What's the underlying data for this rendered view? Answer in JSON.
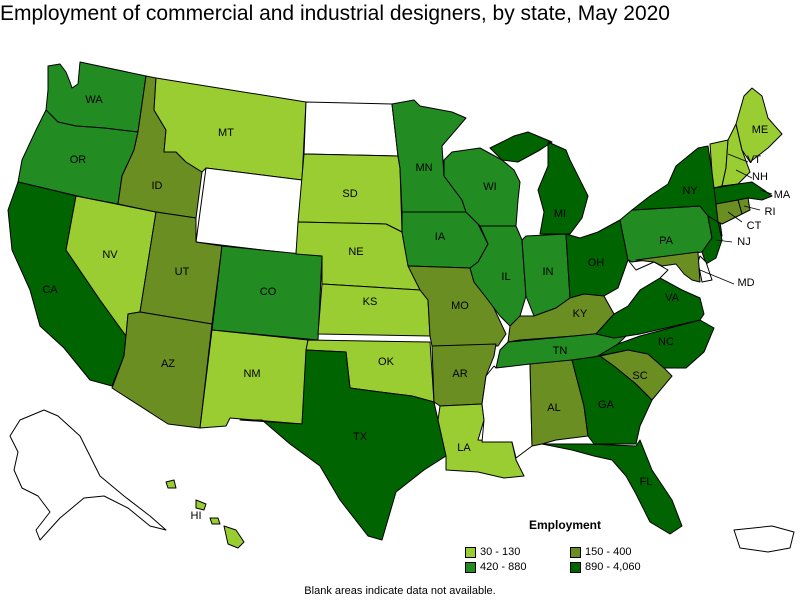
{
  "title": "Employment of commercial and industrial designers, by state, May 2020",
  "legend": {
    "title": "Employment",
    "items": [
      {
        "label": "30 - 130",
        "color": "#9acd32"
      },
      {
        "label": "150 - 400",
        "color": "#6b8e23"
      },
      {
        "label": "420 - 880",
        "color": "#228b22"
      },
      {
        "label": "890 - 4,060",
        "color": "#006400"
      }
    ]
  },
  "footnote": "Blank areas indicate data not available.",
  "colors": {
    "no_data": "#ffffff",
    "tier1": "#9acd32",
    "tier2": "#6b8e23",
    "tier3": "#228b22",
    "tier4": "#006400"
  },
  "states": {
    "WA": "tier3",
    "OR": "tier3",
    "CA": "tier4",
    "NV": "tier1",
    "ID": "tier2",
    "MT": "tier1",
    "WY": "none",
    "UT": "tier2",
    "AZ": "tier2",
    "CO": "tier3",
    "NM": "tier1",
    "ND": "none",
    "SD": "tier1",
    "NE": "tier1",
    "KS": "tier1",
    "OK": "tier1",
    "TX": "tier4",
    "MN": "tier3",
    "IA": "tier3",
    "MO": "tier2",
    "AR": "tier2",
    "LA": "tier1",
    "WI": "tier3",
    "IL": "tier3",
    "MI": "tier4",
    "IN": "tier3",
    "OH": "tier4",
    "KY": "tier2",
    "TN": "tier3",
    "MS": "none",
    "AL": "tier2",
    "GA": "tier4",
    "FL": "tier4",
    "SC": "tier2",
    "NC": "tier4",
    "VA": "tier4",
    "WV": "none",
    "PA": "tier3",
    "NY": "tier4",
    "VT": "tier1",
    "NH": "tier1",
    "ME": "tier1",
    "MA": "tier4",
    "RI": "tier2",
    "CT": "tier2",
    "NJ": "tier4",
    "DE": "none",
    "MD": "tier2",
    "AK": "none",
    "HI": "tier1",
    "PR": "none"
  },
  "labels": {
    "WA": "WA",
    "OR": "OR",
    "CA": "CA",
    "NV": "NV",
    "ID": "ID",
    "MT": "MT",
    "UT": "UT",
    "AZ": "AZ",
    "CO": "CO",
    "NM": "NM",
    "SD": "SD",
    "NE": "NE",
    "KS": "KS",
    "OK": "OK",
    "TX": "TX",
    "MN": "MN",
    "IA": "IA",
    "MO": "MO",
    "AR": "AR",
    "LA": "LA",
    "WI": "WI",
    "IL": "IL",
    "MI": "MI",
    "IN": "IN",
    "OH": "OH",
    "KY": "KY",
    "TN": "TN",
    "AL": "AL",
    "GA": "GA",
    "FL": "FL",
    "SC": "SC",
    "NC": "NC",
    "VA": "VA",
    "PA": "PA",
    "NY": "NY",
    "ME": "ME",
    "VT": "VT",
    "NH": "NH",
    "MA": "MA",
    "RI": "RI",
    "CT": "CT",
    "NJ": "NJ",
    "MD": "MD",
    "HI": "HI"
  }
}
